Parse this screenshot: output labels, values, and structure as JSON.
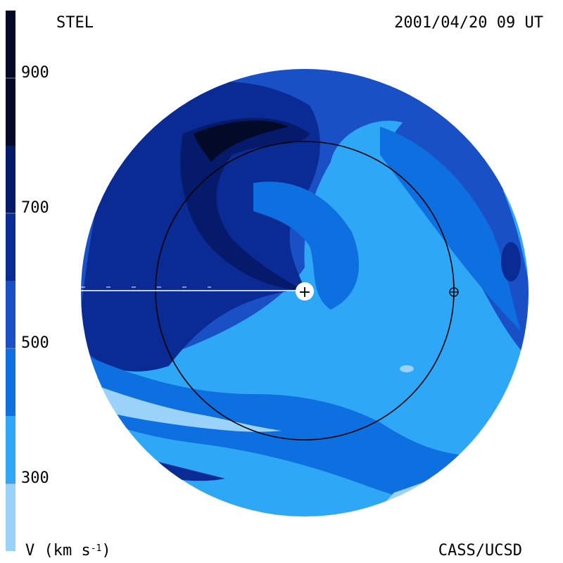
{
  "chart_data": {
    "type": "heatmap",
    "title_left": "STEL",
    "title_right": "2001/04/20 09 UT",
    "credit": "CASS/UCSD",
    "colorbar": {
      "label_main": "V (km s",
      "label_sup": "-1",
      "label_end": ")",
      "ticks": [
        {
          "value": 300,
          "label": "300"
        },
        {
          "value": 500,
          "label": "500"
        },
        {
          "value": 700,
          "label": "700"
        },
        {
          "value": 900,
          "label": "900"
        }
      ],
      "range": [
        200,
        1000
      ],
      "levels": [
        {
          "from": 200,
          "to": 300,
          "color": "#9bd2fa"
        },
        {
          "from": 300,
          "to": 400,
          "color": "#2fa7f7"
        },
        {
          "from": 400,
          "to": 500,
          "color": "#0e6fe0"
        },
        {
          "from": 500,
          "to": 600,
          "color": "#1a50c6"
        },
        {
          "from": 600,
          "to": 700,
          "color": "#0a2a94"
        },
        {
          "from": 700,
          "to": 800,
          "color": "#061a6b"
        },
        {
          "from": 800,
          "to": 1000,
          "color": "#030a28"
        }
      ]
    },
    "markers": {
      "sun": "+",
      "earth": "⊕"
    }
  }
}
